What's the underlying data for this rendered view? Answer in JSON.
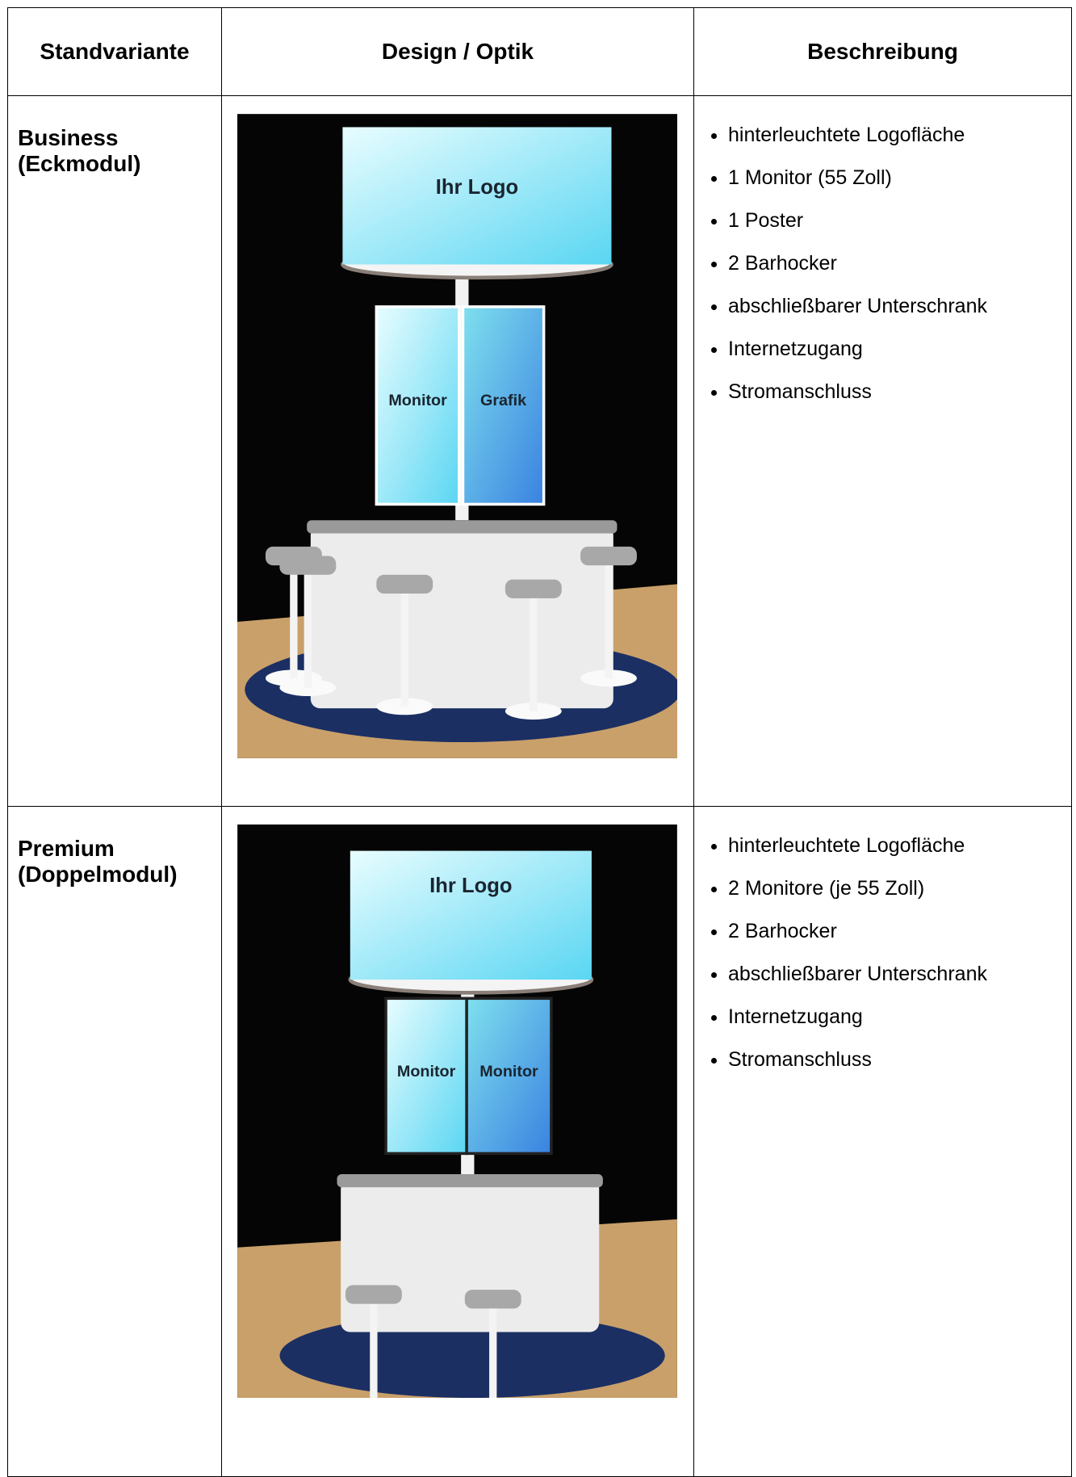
{
  "table": {
    "headers": [
      "Standvariante",
      "Design / Optik",
      "Beschreibung"
    ],
    "rows": [
      {
        "variant": [
          "Business",
          "(Eckmodul)"
        ],
        "image": {
          "logo": "Ihr Logo",
          "panels": [
            "Monitor",
            "Grafik"
          ]
        },
        "features": [
          "hinterleuchtete Logofläche",
          "1 Monitor (55 Zoll)",
          "1 Poster",
          "2 Barhocker",
          "abschließbarer Unterschrank",
          "Internetzugang",
          "Stromanschluss"
        ]
      },
      {
        "variant": [
          "Premium",
          "(Doppelmodul)"
        ],
        "image": {
          "logo": "Ihr Logo",
          "panels": [
            "Monitor",
            "Monitor"
          ]
        },
        "features": [
          "hinterleuchtete Logofläche",
          "2 Monitore (je 55 Zoll)",
          "2 Barhocker",
          "abschließbarer Unterschrank",
          "Internetzugang",
          "Stromanschluss"
        ]
      }
    ]
  }
}
